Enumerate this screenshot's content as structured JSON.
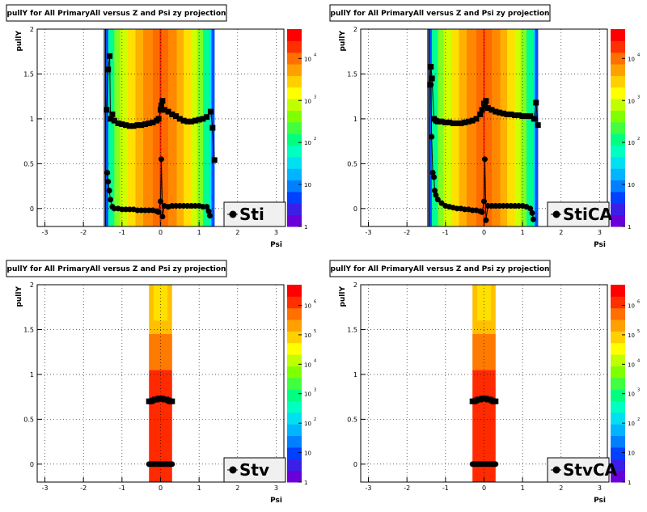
{
  "footer": "",
  "chart_data": [
    {
      "type": "heatmap",
      "title": "pullY for All PrimaryAll versus Z and Psi zy projection",
      "xlabel": "Psi",
      "ylabel": "pullY",
      "xlim": [
        -3.2,
        3.2
      ],
      "ylim": [
        -0.2,
        2
      ],
      "xticks": [
        -3,
        -2,
        -1,
        0,
        1,
        2,
        3
      ],
      "yticks": [
        0,
        0.5,
        1,
        1.5,
        2
      ],
      "color_scale": "log",
      "palette_labels": [
        "1",
        "10",
        "10^2",
        "10^3",
        "10^4"
      ],
      "legend": "Sti",
      "grid": true,
      "series": [
        {
          "name": "Sti",
          "marker": "circle",
          "x": [
            -1.38,
            -1.36,
            -1.33,
            -1.3,
            -1.25,
            -1.2,
            -1.1,
            -1.0,
            -0.9,
            -0.8,
            -0.7,
            -0.6,
            -0.5,
            -0.4,
            -0.3,
            -0.2,
            -0.1,
            -0.05,
            0.0,
            0.02,
            0.05,
            0.1,
            0.2,
            0.3,
            0.4,
            0.5,
            0.6,
            0.7,
            0.8,
            0.9,
            1.0,
            1.1,
            1.2,
            1.25,
            1.28
          ],
          "y": [
            0.4,
            0.3,
            0.2,
            0.1,
            0.02,
            0.0,
            0.0,
            -0.01,
            -0.01,
            -0.01,
            -0.01,
            -0.02,
            -0.02,
            -0.02,
            -0.02,
            -0.02,
            -0.03,
            -0.04,
            0.08,
            0.55,
            -0.09,
            0.03,
            0.02,
            0.03,
            0.03,
            0.03,
            0.03,
            0.03,
            0.03,
            0.03,
            0.03,
            0.02,
            0.02,
            -0.03,
            -0.08
          ]
        },
        {
          "name": "Sti",
          "marker": "square",
          "x": [
            -1.4,
            -1.36,
            -1.32,
            -1.3,
            -1.25,
            -1.2,
            -1.1,
            -1.0,
            -0.9,
            -0.8,
            -0.7,
            -0.6,
            -0.5,
            -0.4,
            -0.3,
            -0.2,
            -0.1,
            -0.05,
            0.0,
            0.02,
            0.05,
            0.1,
            0.2,
            0.3,
            0.4,
            0.5,
            0.6,
            0.7,
            0.8,
            0.9,
            1.0,
            1.1,
            1.2,
            1.3,
            1.35,
            1.4
          ],
          "y": [
            1.1,
            1.55,
            1.7,
            1.0,
            1.05,
            0.98,
            0.95,
            0.94,
            0.93,
            0.92,
            0.92,
            0.93,
            0.93,
            0.94,
            0.95,
            0.96,
            0.98,
            1.0,
            1.1,
            1.15,
            1.2,
            1.1,
            1.08,
            1.05,
            1.03,
            1.0,
            0.98,
            0.97,
            0.97,
            0.98,
            0.99,
            1.0,
            1.02,
            1.08,
            0.9,
            0.54
          ]
        }
      ]
    },
    {
      "type": "heatmap",
      "title": "pullY for All PrimaryAll versus Z and Psi zy projection",
      "xlabel": "Psi",
      "ylabel": "pullY",
      "xlim": [
        -3.2,
        3.2
      ],
      "ylim": [
        -0.2,
        2
      ],
      "xticks": [
        -3,
        -2,
        -1,
        0,
        1,
        2,
        3
      ],
      "yticks": [
        0,
        0.5,
        1,
        1.5,
        2
      ],
      "color_scale": "log",
      "palette_labels": [
        "1",
        "10",
        "10^2",
        "10^3",
        "10^4"
      ],
      "legend": "StiCA",
      "grid": true,
      "series": [
        {
          "name": "StiCA",
          "marker": "circle",
          "x": [
            -1.38,
            -1.36,
            -1.33,
            -1.3,
            -1.28,
            -1.25,
            -1.2,
            -1.1,
            -1.0,
            -0.9,
            -0.8,
            -0.7,
            -0.6,
            -0.5,
            -0.4,
            -0.3,
            -0.2,
            -0.1,
            -0.05,
            0.0,
            0.02,
            0.05,
            0.1,
            0.2,
            0.3,
            0.4,
            0.5,
            0.6,
            0.7,
            0.8,
            0.9,
            1.0,
            1.1,
            1.2,
            1.25,
            1.28
          ],
          "y": [
            1.38,
            0.8,
            0.4,
            0.35,
            0.2,
            0.15,
            0.1,
            0.06,
            0.03,
            0.02,
            0.01,
            0.0,
            0.0,
            -0.01,
            -0.01,
            -0.02,
            -0.02,
            -0.03,
            -0.04,
            0.08,
            0.55,
            -0.13,
            0.03,
            0.03,
            0.03,
            0.03,
            0.03,
            0.03,
            0.03,
            0.03,
            0.03,
            0.03,
            0.02,
            0.0,
            -0.05,
            -0.12
          ]
        },
        {
          "name": "StiCA",
          "marker": "square",
          "x": [
            -1.4,
            -1.38,
            -1.35,
            -1.3,
            -1.25,
            -1.2,
            -1.1,
            -1.0,
            -0.9,
            -0.8,
            -0.7,
            -0.6,
            -0.5,
            -0.4,
            -0.3,
            -0.2,
            -0.1,
            -0.05,
            0.0,
            0.02,
            0.05,
            0.1,
            0.2,
            0.3,
            0.4,
            0.5,
            0.6,
            0.7,
            0.8,
            0.9,
            1.0,
            1.1,
            1.2,
            1.3,
            1.35,
            1.4
          ],
          "y": [
            1.38,
            1.58,
            1.45,
            1.0,
            0.98,
            0.97,
            0.97,
            0.96,
            0.96,
            0.95,
            0.95,
            0.95,
            0.96,
            0.97,
            0.98,
            1.0,
            1.05,
            1.1,
            1.17,
            1.15,
            1.2,
            1.12,
            1.1,
            1.08,
            1.07,
            1.06,
            1.05,
            1.05,
            1.04,
            1.04,
            1.03,
            1.03,
            1.03,
            1.0,
            1.18,
            0.93
          ]
        }
      ]
    },
    {
      "type": "heatmap",
      "title": "pullY for All PrimaryAll versus Z and Psi zy projection",
      "xlabel": "Psi",
      "ylabel": "pullY",
      "xlim": [
        -3.2,
        3.2
      ],
      "ylim": [
        -0.2,
        2
      ],
      "xticks": [
        -3,
        -2,
        -1,
        0,
        1,
        2,
        3
      ],
      "yticks": [
        0,
        0.5,
        1,
        1.5,
        2
      ],
      "color_scale": "log",
      "palette_labels": [
        "1",
        "10",
        "10^2",
        "10^3",
        "10^4",
        "10^5",
        "10^6"
      ],
      "legend": "Stv",
      "grid": true,
      "series": [
        {
          "name": "Stv",
          "marker": "circle",
          "x": [
            -0.3,
            -0.25,
            -0.2,
            -0.15,
            -0.1,
            -0.05,
            0.0,
            0.05,
            0.1,
            0.15,
            0.2,
            0.25,
            0.3
          ],
          "y": [
            0.0,
            0.0,
            0.0,
            0.0,
            0.0,
            0.0,
            0.0,
            0.0,
            0.0,
            0.0,
            0.0,
            0.0,
            0.0
          ]
        },
        {
          "name": "Stv",
          "marker": "square",
          "x": [
            -0.3,
            -0.25,
            -0.2,
            -0.15,
            -0.1,
            -0.05,
            0.0,
            0.05,
            0.1,
            0.15,
            0.2,
            0.25,
            0.3
          ],
          "y": [
            0.7,
            0.7,
            0.71,
            0.72,
            0.72,
            0.73,
            0.73,
            0.73,
            0.72,
            0.72,
            0.71,
            0.7,
            0.7
          ]
        }
      ]
    },
    {
      "type": "heatmap",
      "title": "pullY for All PrimaryAll versus Z and Psi zy projection",
      "xlabel": "Psi",
      "ylabel": "pullY",
      "xlim": [
        -3.2,
        3.2
      ],
      "ylim": [
        -0.2,
        2
      ],
      "xticks": [
        -3,
        -2,
        -1,
        0,
        1,
        2,
        3
      ],
      "yticks": [
        0,
        0.5,
        1,
        1.5,
        2
      ],
      "color_scale": "log",
      "palette_labels": [
        "1",
        "10",
        "10^2",
        "10^3",
        "10^4",
        "10^5",
        "10^6"
      ],
      "legend": "StvCA",
      "grid": true,
      "series": [
        {
          "name": "StvCA",
          "marker": "circle",
          "x": [
            -0.3,
            -0.25,
            -0.2,
            -0.15,
            -0.1,
            -0.05,
            0.0,
            0.05,
            0.1,
            0.15,
            0.2,
            0.25,
            0.3
          ],
          "y": [
            0.0,
            0.0,
            0.0,
            0.0,
            0.0,
            0.0,
            0.0,
            0.0,
            0.0,
            0.0,
            0.0,
            0.0,
            0.0
          ]
        },
        {
          "name": "StvCA",
          "marker": "square",
          "x": [
            -0.3,
            -0.25,
            -0.2,
            -0.15,
            -0.1,
            -0.05,
            0.0,
            0.05,
            0.1,
            0.15,
            0.2,
            0.25,
            0.3
          ],
          "y": [
            0.7,
            0.7,
            0.71,
            0.72,
            0.72,
            0.73,
            0.73,
            0.73,
            0.72,
            0.72,
            0.71,
            0.7,
            0.7
          ]
        }
      ]
    }
  ]
}
